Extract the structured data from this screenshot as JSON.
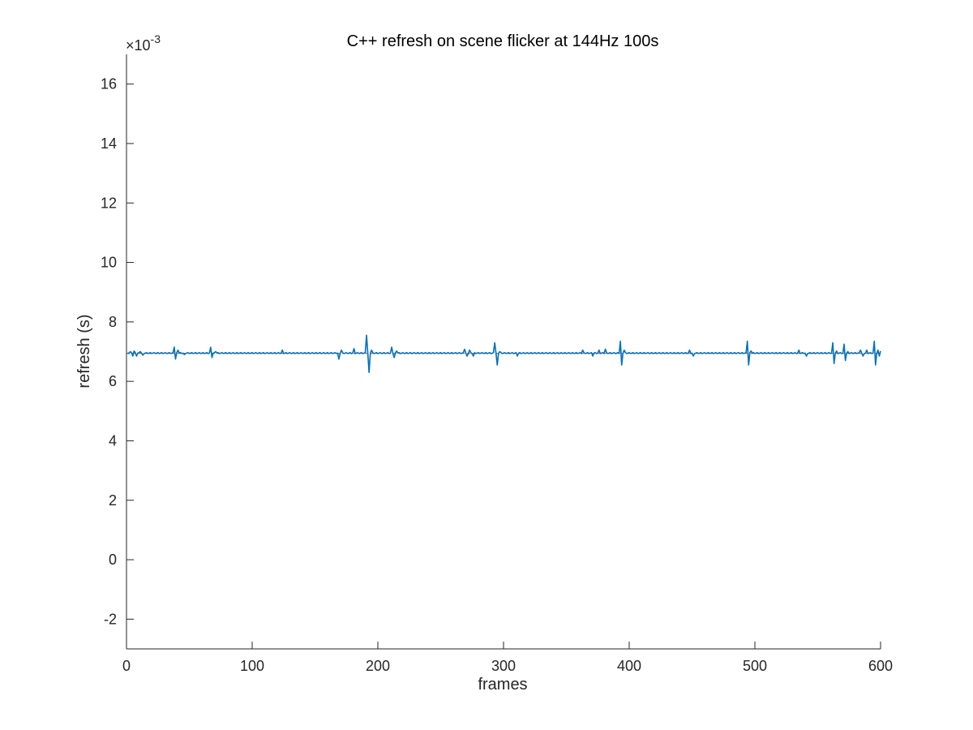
{
  "chart_data": {
    "type": "line",
    "title": "C++ refresh on scene flicker at 144Hz 100s",
    "xlabel": "frames",
    "ylabel": "refresh (s)",
    "y_exponent_label": "×10",
    "y_exponent_power": "-3",
    "xlim": [
      0,
      600
    ],
    "ylim": [
      -3,
      17
    ],
    "x_ticks": [
      0,
      100,
      200,
      300,
      400,
      500,
      600
    ],
    "x_tick_labels": [
      "0",
      "100",
      "200",
      "300",
      "400",
      "500",
      "600"
    ],
    "y_ticks": [
      -2,
      0,
      2,
      4,
      6,
      8,
      10,
      12,
      14,
      16
    ],
    "y_tick_labels": [
      "-2",
      "0",
      "2",
      "4",
      "6",
      "8",
      "10",
      "12",
      "14",
      "16"
    ],
    "grid": false,
    "colors": {
      "series": "#0072bd",
      "mean": "#d95319",
      "axes": "#262626"
    },
    "series": [
      {
        "values_scale": 0.001,
        "baseline": 6.95,
        "mean_value": 6.94,
        "n_points": 600,
        "spikes": [
          [
            2,
            7.0
          ],
          [
            4,
            6.85
          ],
          [
            5,
            7.02
          ],
          [
            7,
            6.85
          ],
          [
            10,
            7.0
          ],
          [
            12,
            6.88
          ],
          [
            37,
            7.15
          ],
          [
            38,
            6.75
          ],
          [
            40,
            7.05
          ],
          [
            45,
            6.9
          ],
          [
            66,
            7.15
          ],
          [
            67,
            6.8
          ],
          [
            70,
            7.0
          ],
          [
            123,
            7.05
          ],
          [
            168,
            6.75
          ],
          [
            170,
            7.05
          ],
          [
            180,
            7.1
          ],
          [
            190,
            7.55
          ],
          [
            192,
            6.3
          ],
          [
            194,
            7.05
          ],
          [
            210,
            7.15
          ],
          [
            212,
            6.8
          ],
          [
            214,
            7.02
          ],
          [
            268,
            7.08
          ],
          [
            270,
            6.85
          ],
          [
            272,
            7.05
          ],
          [
            275,
            6.85
          ],
          [
            292,
            7.3
          ],
          [
            294,
            6.55
          ],
          [
            296,
            7.0
          ],
          [
            310,
            6.85
          ],
          [
            362,
            7.05
          ],
          [
            370,
            6.85
          ],
          [
            375,
            7.05
          ],
          [
            380,
            7.08
          ],
          [
            392,
            7.35
          ],
          [
            393,
            6.55
          ],
          [
            395,
            7.05
          ],
          [
            447,
            7.05
          ],
          [
            450,
            6.85
          ],
          [
            493,
            7.35
          ],
          [
            494,
            6.55
          ],
          [
            496,
            7.02
          ],
          [
            534,
            7.05
          ],
          [
            540,
            6.85
          ],
          [
            561,
            7.3
          ],
          [
            562,
            6.6
          ],
          [
            564,
            7.02
          ],
          [
            570,
            7.25
          ],
          [
            571,
            6.7
          ],
          [
            573,
            7.0
          ],
          [
            583,
            7.05
          ],
          [
            585,
            6.85
          ],
          [
            588,
            7.05
          ],
          [
            594,
            7.35
          ],
          [
            595,
            6.55
          ],
          [
            597,
            7.05
          ],
          [
            598,
            6.85
          ],
          [
            599,
            7.02
          ]
        ]
      }
    ]
  }
}
